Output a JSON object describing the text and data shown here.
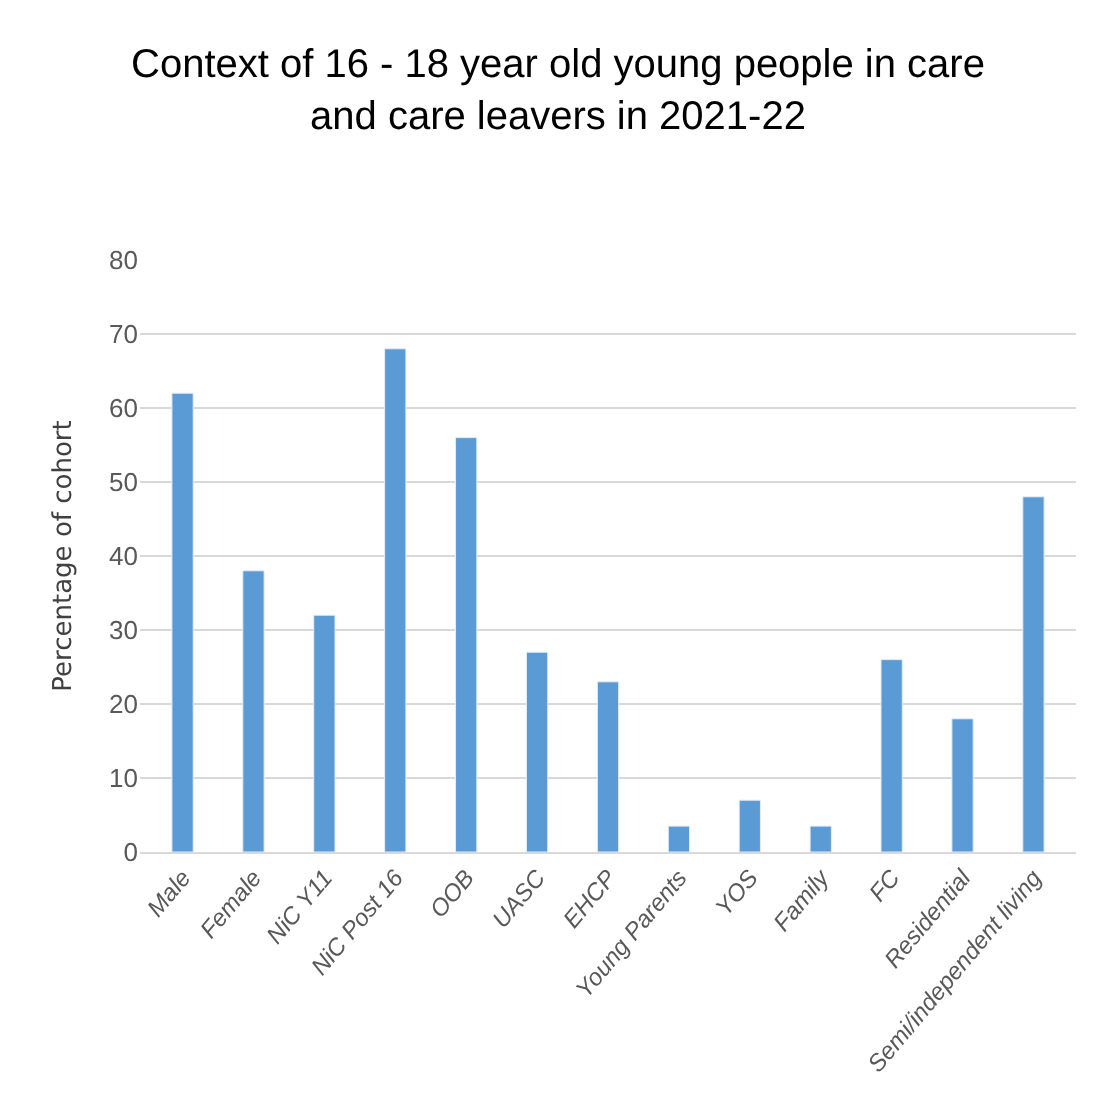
{
  "chart_data": {
    "type": "bar",
    "title": "Context of 16 - 18 year old young people in care and care leavers in 2021-22",
    "ylabel": "Percentage of cohort",
    "categories": [
      "Male",
      "Female",
      "NiC Y11",
      "NiC Post 16",
      "OOB",
      "UASC",
      "EHCP",
      "Young Parents",
      "YOS",
      "Family",
      "FC",
      "Residential",
      "Semi/independent living"
    ],
    "values": [
      62,
      38,
      32,
      68,
      56,
      27,
      23,
      3.5,
      7,
      3.5,
      26,
      18,
      48
    ],
    "color": "#5b9bd5",
    "ylim": [
      0,
      80
    ],
    "yticks": [
      0,
      10,
      20,
      30,
      40,
      50,
      60,
      70,
      80
    ],
    "grid": "y"
  }
}
